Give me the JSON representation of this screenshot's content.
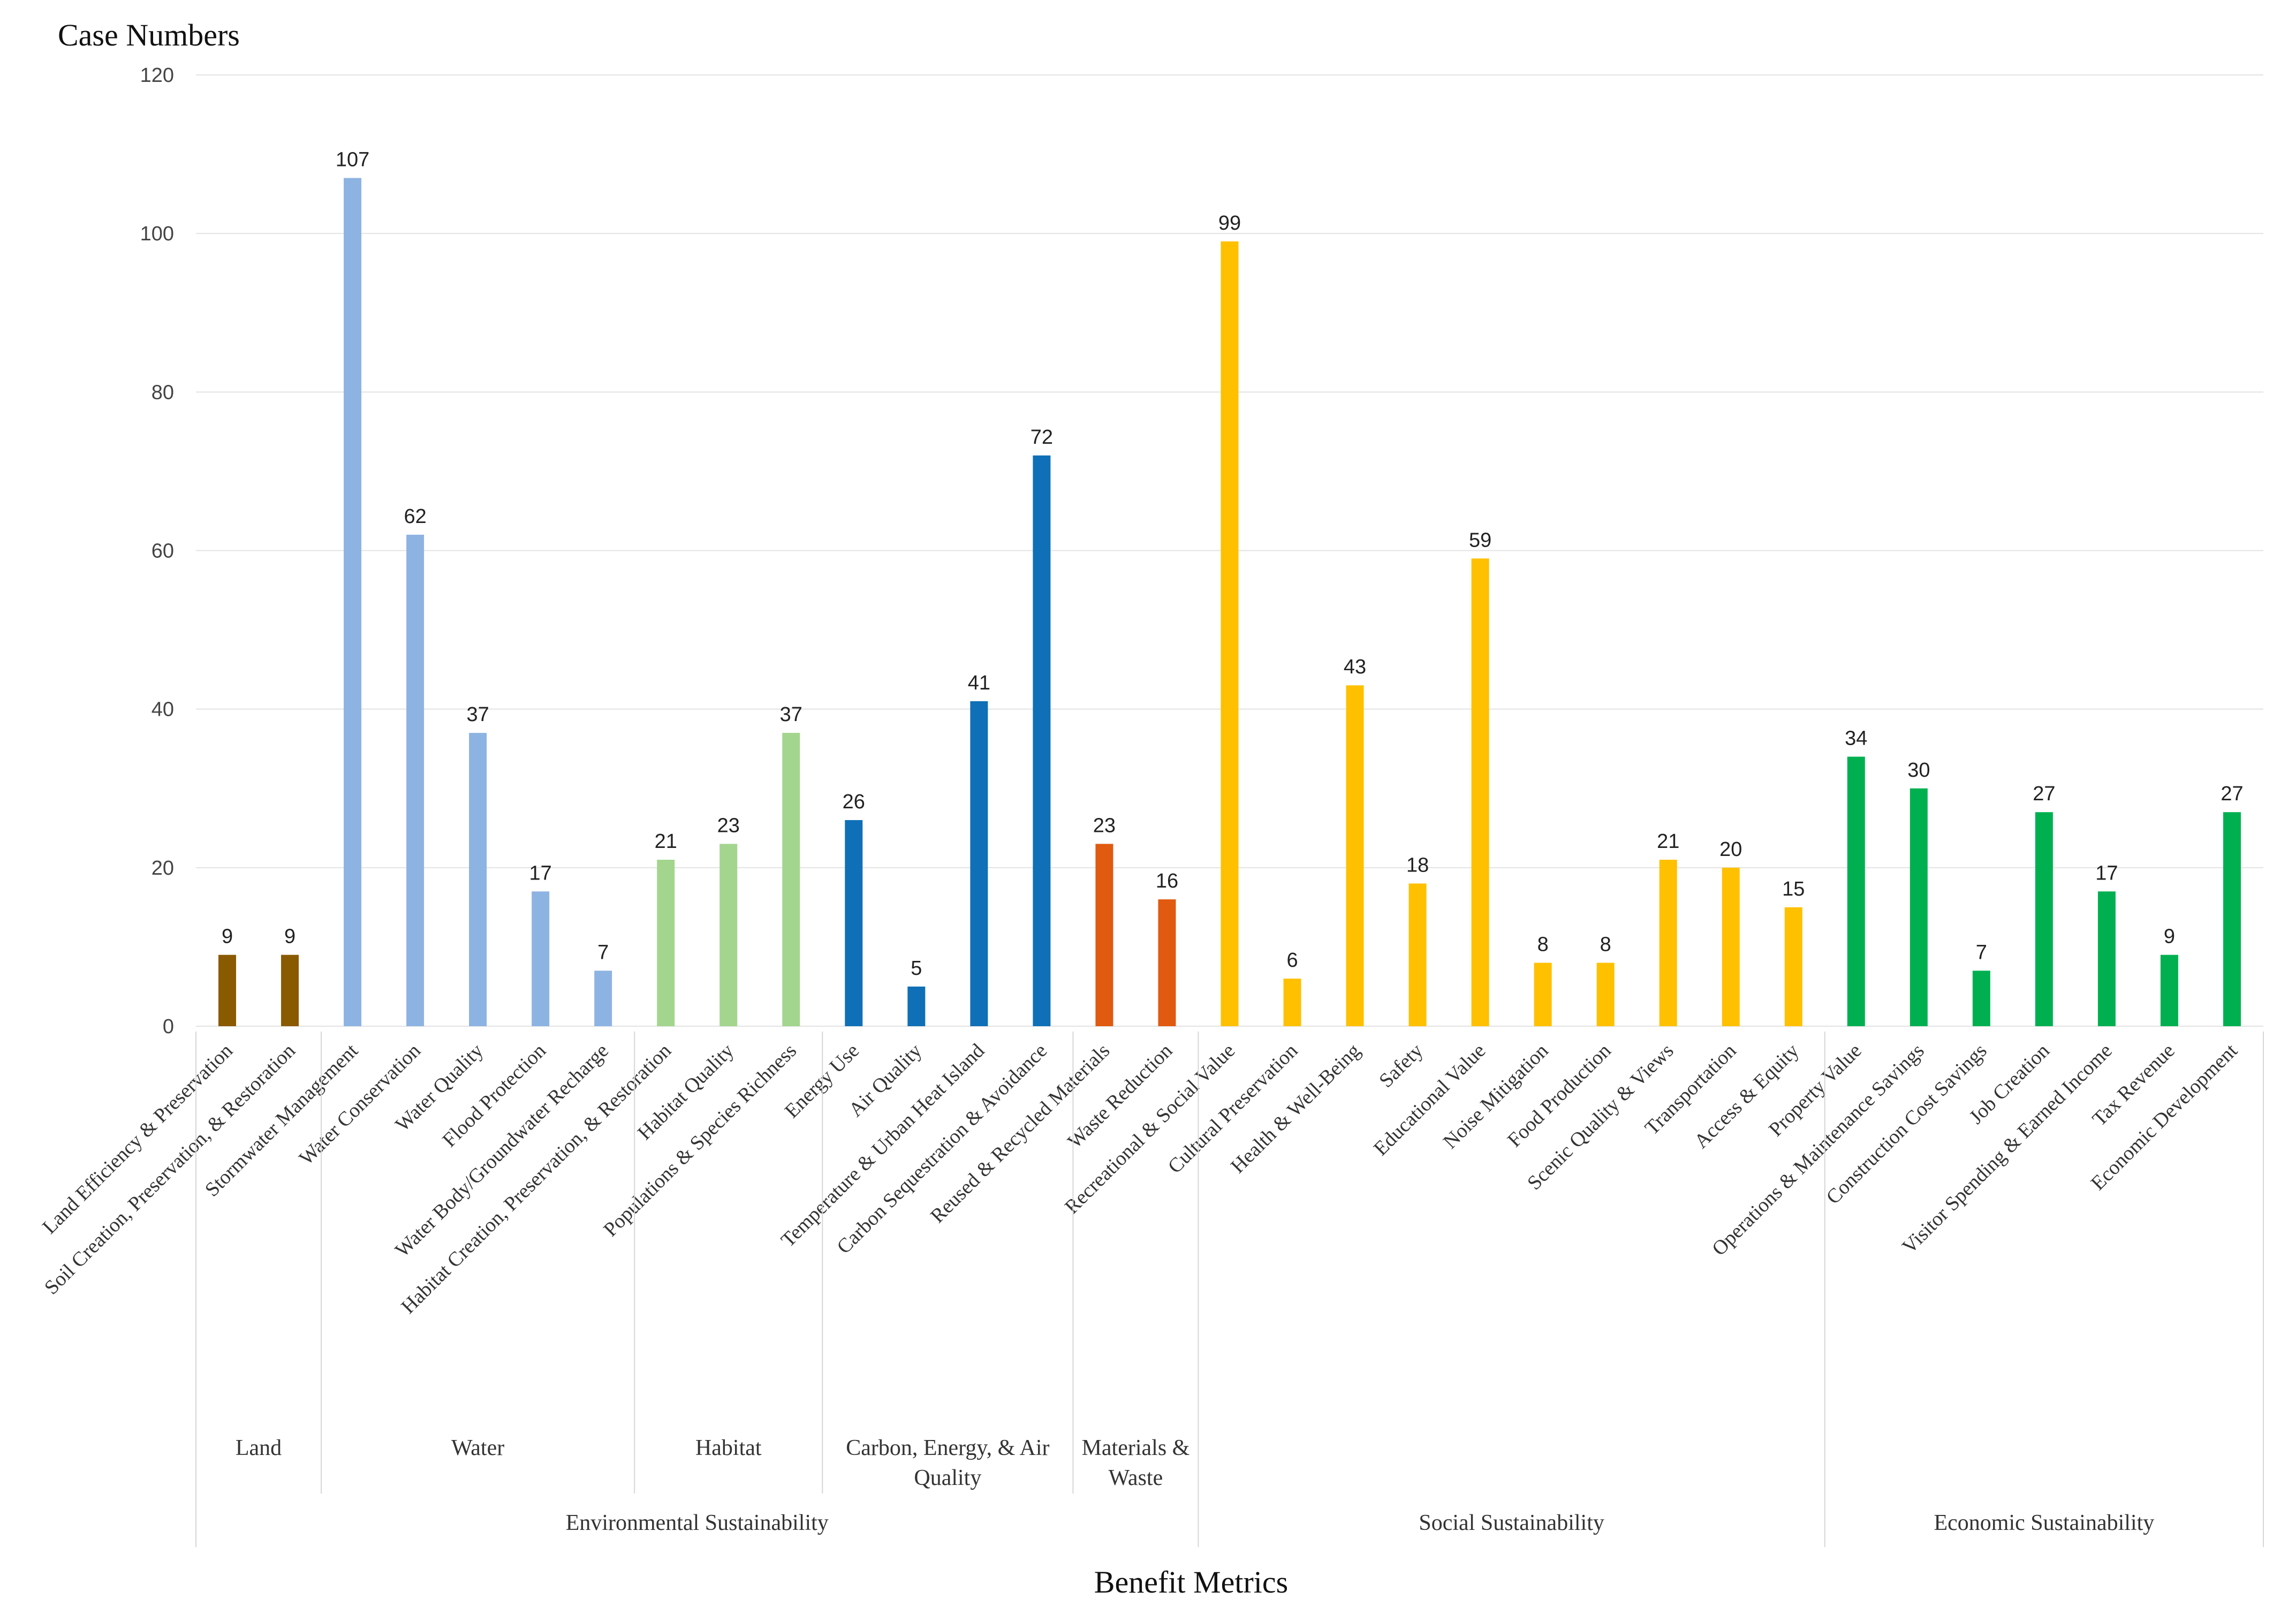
{
  "chart_data": {
    "type": "bar",
    "ylabel": "Case Numbers",
    "xlabel": "Benefit Metrics",
    "ylim": [
      0,
      120
    ],
    "yticks": [
      0,
      20,
      40,
      60,
      80,
      100,
      120
    ],
    "grid": true,
    "categories": [
      "Land Efficiency & Preservation",
      "Soil Creation, Preservation, & Restoration",
      "Stormwater Management",
      "Water Conservation",
      "Water Quality",
      "Flood Protection",
      "Water Body/Groundwater Recharge",
      "Habitat Creation, Preservation, & Restoration",
      "Habitat Quality",
      "Populations & Species Richness",
      "Energy Use",
      "Air Quality",
      "Temperature & Urban Heat Island",
      "Carbon Sequestration & Avoidance",
      "Reused & Recycled Materials",
      "Waste Reduction",
      "Recreational & Social Value",
      "Cultural Preservation",
      "Health & Well-Being",
      "Safety",
      "Educational Value",
      "Noise Mitigation",
      "Food Production",
      "Scenic Quality & Views",
      "Transportation",
      "Access & Equity",
      "Property Value",
      "Operations & Maintenance Savings",
      "Construction Cost Savings",
      "Job Creation",
      "Visitor Spending & Earned Income",
      "Tax Revenue",
      "Economic Development"
    ],
    "values": [
      9,
      9,
      107,
      62,
      37,
      17,
      7,
      21,
      23,
      37,
      26,
      5,
      41,
      72,
      23,
      16,
      99,
      6,
      43,
      18,
      59,
      8,
      8,
      21,
      20,
      15,
      34,
      30,
      7,
      27,
      17,
      9,
      27
    ],
    "bar_colors": [
      "#8a5a00",
      "#8a5a00",
      "#8db3e2",
      "#8db3e2",
      "#8db3e2",
      "#8db3e2",
      "#8db3e2",
      "#a3d58e",
      "#a3d58e",
      "#a3d58e",
      "#0f70b7",
      "#0f70b7",
      "#0f70b7",
      "#0f70b7",
      "#e05a10",
      "#e05a10",
      "#ffc000",
      "#ffc000",
      "#ffc000",
      "#ffc000",
      "#ffc000",
      "#ffc000",
      "#ffc000",
      "#ffc000",
      "#ffc000",
      "#ffc000",
      "#00b050",
      "#00b050",
      "#00b050",
      "#00b050",
      "#00b050",
      "#00b050",
      "#00b050"
    ],
    "subgroups": [
      {
        "label_lines": [
          "Land"
        ],
        "start": 0,
        "end": 1
      },
      {
        "label_lines": [
          "Water"
        ],
        "start": 2,
        "end": 6
      },
      {
        "label_lines": [
          "Habitat"
        ],
        "start": 7,
        "end": 9
      },
      {
        "label_lines": [
          "Carbon, Energy, & Air",
          "Quality"
        ],
        "start": 10,
        "end": 13
      },
      {
        "label_lines": [
          "Materials &",
          "Waste"
        ],
        "start": 14,
        "end": 15
      }
    ],
    "groups": [
      {
        "label": "Environmental Sustainability",
        "start": 0,
        "end": 15
      },
      {
        "label": "Social Sustainability",
        "start": 16,
        "end": 25
      },
      {
        "label": "Economic Sustainability",
        "start": 26,
        "end": 32
      }
    ]
  }
}
